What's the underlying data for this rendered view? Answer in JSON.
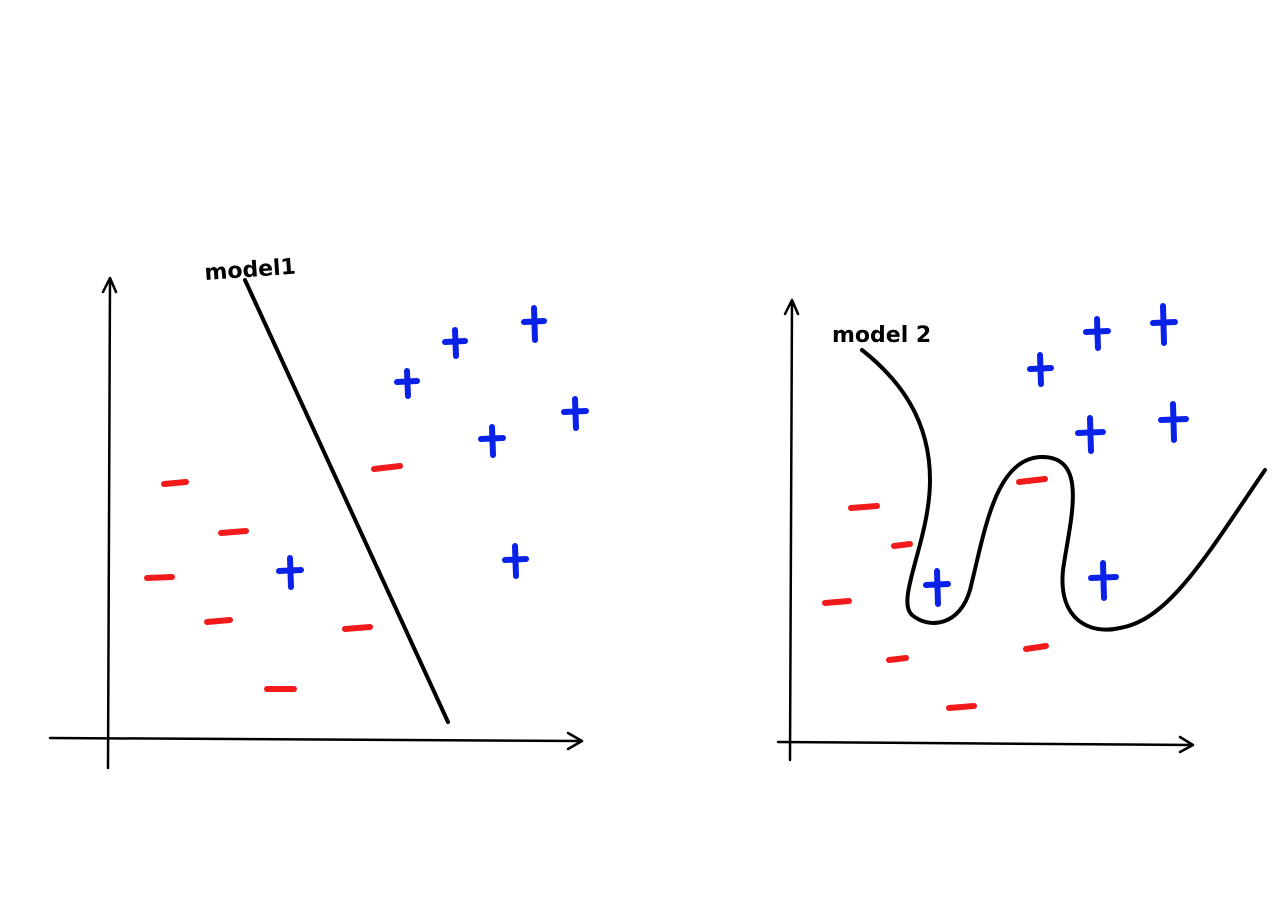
{
  "panels": [
    {
      "label": "model1"
    },
    {
      "label": "model 2"
    }
  ]
}
